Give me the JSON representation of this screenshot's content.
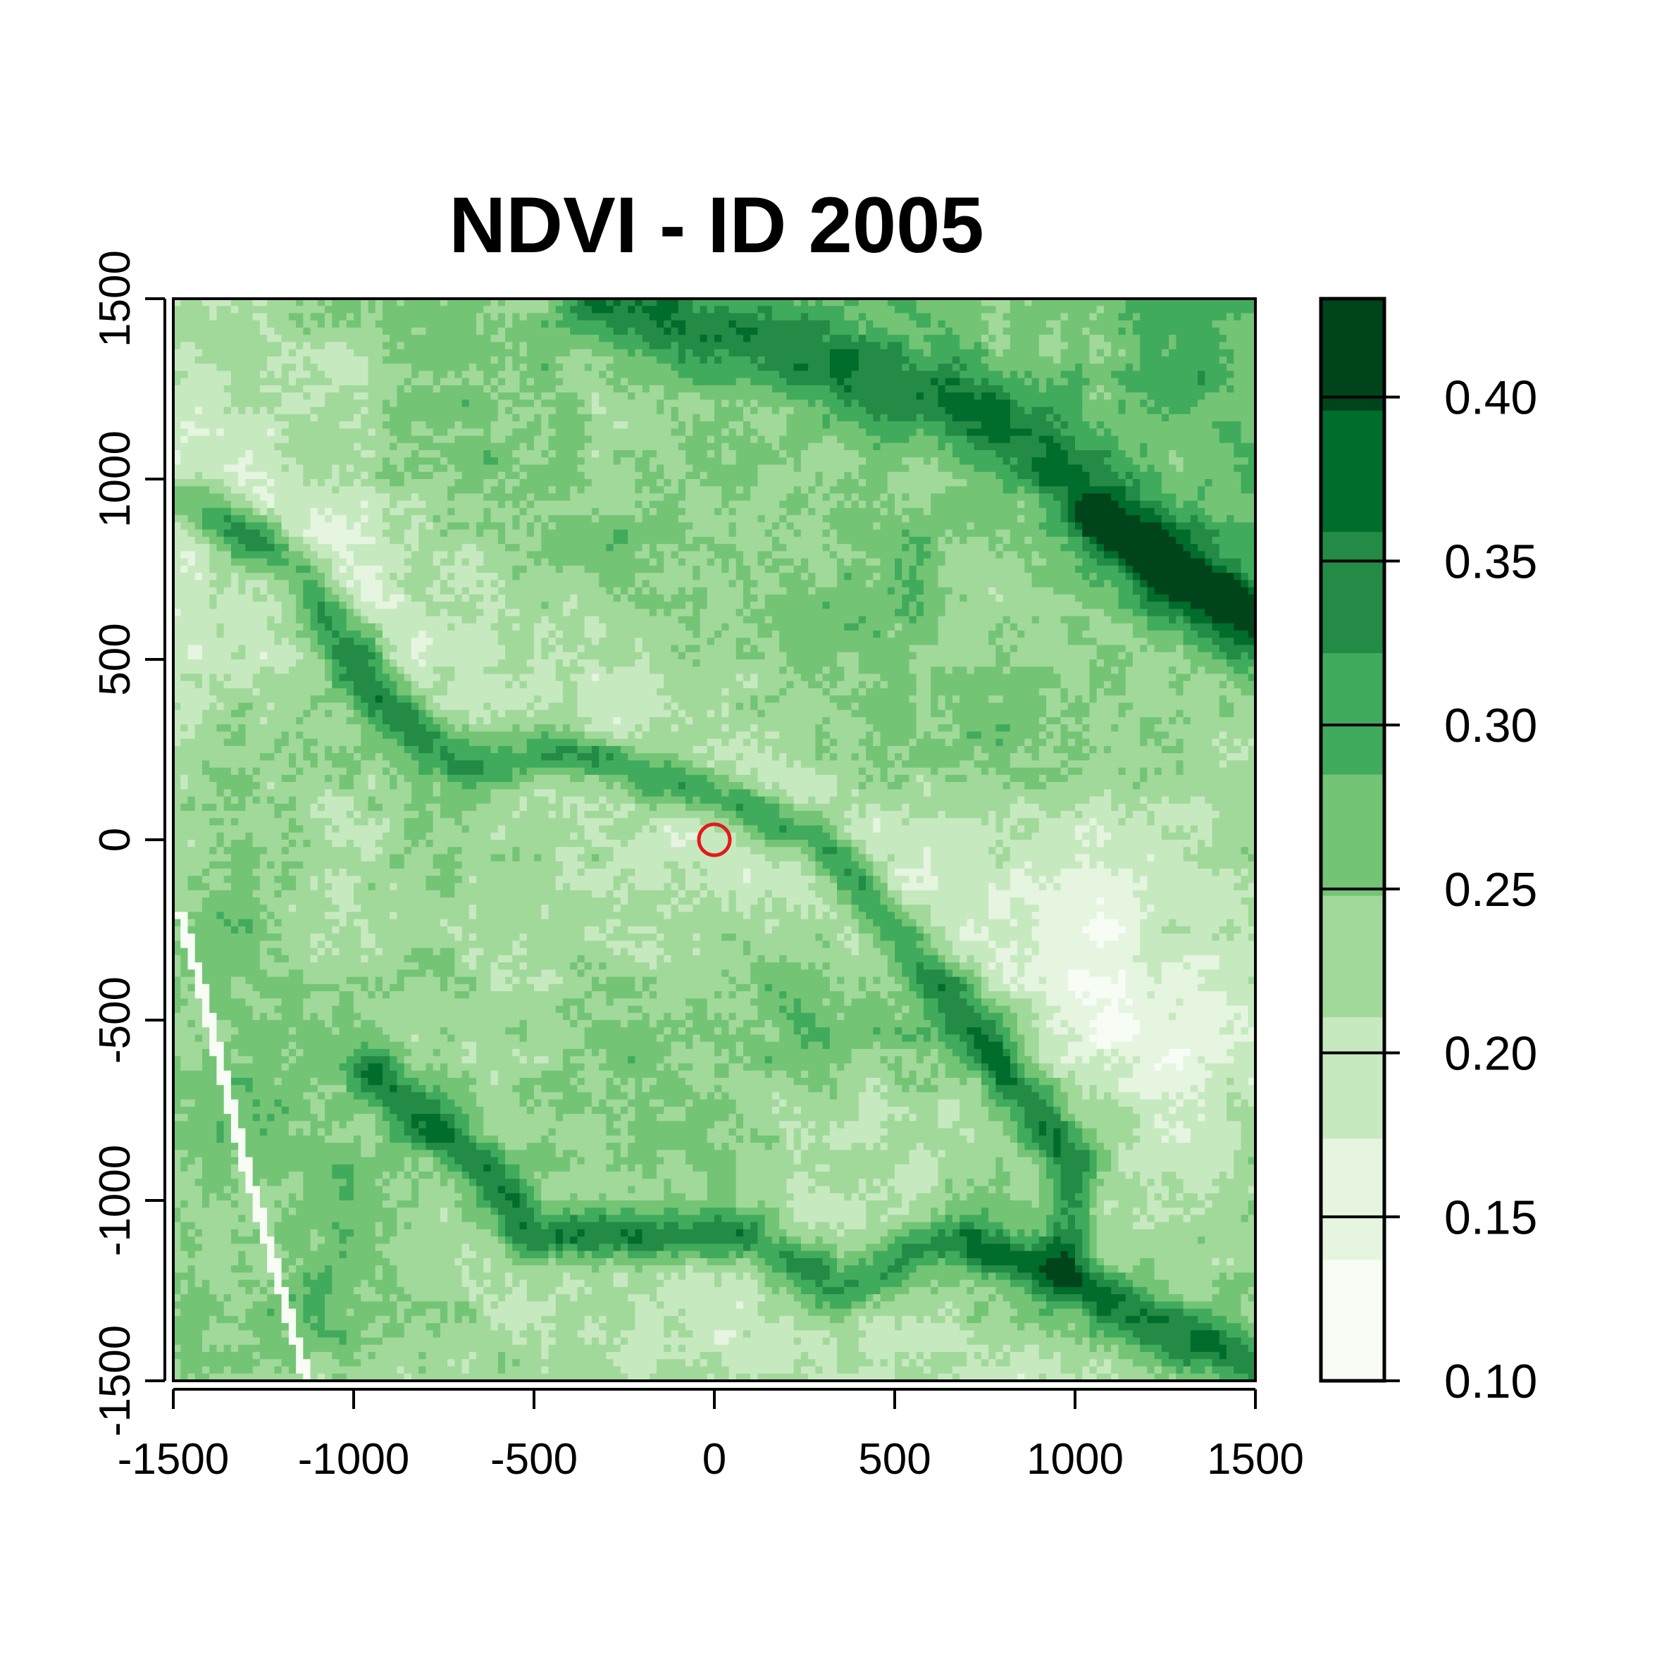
{
  "chart_data": {
    "type": "heatmap",
    "title": "NDVI - ID 2005",
    "xlabel": "",
    "ylabel": "",
    "xlim": [
      -1500,
      1500
    ],
    "ylim": [
      -1500,
      1500
    ],
    "x_ticks": [
      -1500,
      -1000,
      -500,
      0,
      500,
      1000,
      1500
    ],
    "y_ticks": [
      -1500,
      -1000,
      -500,
      0,
      500,
      1000,
      1500
    ],
    "x_tick_labels": [
      "-1500",
      "-1000",
      "-500",
      "0",
      "500",
      "1000",
      "1500"
    ],
    "y_tick_labels": [
      "-1500",
      "-1000",
      "-500",
      "0",
      "500",
      "1000",
      "1500"
    ],
    "grid": false,
    "colorbar": {
      "range": [
        0.1,
        0.43
      ],
      "ticks": [
        0.1,
        0.15,
        0.2,
        0.25,
        0.3,
        0.35,
        0.4
      ],
      "tick_labels": [
        "0.10",
        "0.15",
        "0.20",
        "0.25",
        "0.30",
        "0.35",
        "0.40"
      ],
      "breaks": [
        0.1,
        0.137,
        0.174,
        0.211,
        0.248,
        0.285,
        0.322,
        0.359,
        0.396,
        0.433
      ],
      "colors": [
        "#f7fcf5",
        "#e5f5e0",
        "#c7e9c0",
        "#a1d99b",
        "#74c476",
        "#41ab5d",
        "#238b45",
        "#006d2c",
        "#00441b"
      ]
    },
    "marker": {
      "x": 0,
      "y": 0,
      "shape": "open-circle",
      "color": "#e31a1c"
    },
    "features": [
      {
        "name": "dark-ridge-upper",
        "value": 0.36,
        "width": 75,
        "points": [
          [
            -1450,
            950
          ],
          [
            -1150,
            750
          ],
          [
            -950,
            420
          ],
          [
            -700,
            200
          ],
          [
            -400,
            250
          ],
          [
            -100,
            150
          ],
          [
            300,
            0
          ],
          [
            500,
            -250
          ],
          [
            700,
            -500
          ],
          [
            850,
            -700
          ],
          [
            1000,
            -900
          ],
          [
            980,
            -1200
          ],
          [
            1200,
            -1350
          ],
          [
            1500,
            -1450
          ]
        ]
      },
      {
        "name": "dark-ridge-lower",
        "value": 0.36,
        "width": 70,
        "points": [
          [
            -950,
            -650
          ],
          [
            -650,
            -900
          ],
          [
            -500,
            -1100
          ],
          [
            -200,
            -1100
          ],
          [
            100,
            -1100
          ],
          [
            350,
            -1250
          ],
          [
            650,
            -1100
          ],
          [
            950,
            -1200
          ]
        ]
      },
      {
        "name": "dark-band-northeast",
        "value": 0.39,
        "width": 60,
        "points": [
          [
            -300,
            1500
          ],
          [
            200,
            1350
          ],
          [
            700,
            1200
          ],
          [
            1000,
            1000
          ],
          [
            1300,
            700
          ],
          [
            1500,
            600
          ]
        ]
      },
      {
        "name": "dark-band-east",
        "value": 0.4,
        "width": 55,
        "points": [
          [
            1050,
            900
          ],
          [
            1350,
            700
          ],
          [
            1500,
            620
          ]
        ]
      },
      {
        "name": "light-road",
        "value": 0.1,
        "width": 14,
        "points": [
          [
            -1480,
            -200
          ],
          [
            -1400,
            -500
          ],
          [
            -1300,
            -900
          ],
          [
            -1200,
            -1250
          ],
          [
            -1130,
            -1500
          ]
        ]
      }
    ]
  }
}
